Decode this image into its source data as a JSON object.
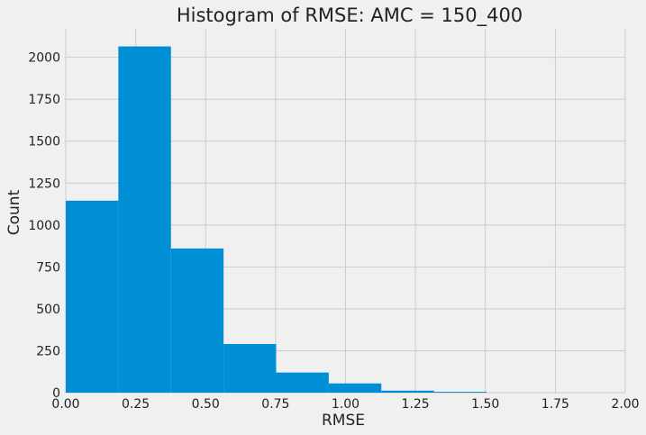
{
  "chart_data": {
    "type": "bar",
    "title": "Histogram of RMSE: AMC = 150_400",
    "xlabel": "RMSE",
    "ylabel": "Count",
    "xlim": [
      0.0,
      2.0
    ],
    "ylim": [
      0,
      2170
    ],
    "xticks": [
      "0.00",
      "0.25",
      "0.50",
      "0.75",
      "1.00",
      "1.25",
      "1.50",
      "1.75",
      "2.00"
    ],
    "yticks": [
      "0",
      "250",
      "500",
      "750",
      "1000",
      "1250",
      "1500",
      "1750",
      "2000"
    ],
    "bins": [
      {
        "x0": 0.0,
        "x1": 0.188,
        "count": 1145
      },
      {
        "x0": 0.188,
        "x1": 0.376,
        "count": 2065
      },
      {
        "x0": 0.376,
        "x1": 0.564,
        "count": 860
      },
      {
        "x0": 0.564,
        "x1": 0.752,
        "count": 290
      },
      {
        "x0": 0.752,
        "x1": 0.94,
        "count": 120
      },
      {
        "x0": 0.94,
        "x1": 1.128,
        "count": 55
      },
      {
        "x0": 1.128,
        "x1": 1.316,
        "count": 12
      },
      {
        "x0": 1.316,
        "x1": 1.504,
        "count": 5
      }
    ],
    "bar_color": "#008fd5",
    "grid": true
  }
}
